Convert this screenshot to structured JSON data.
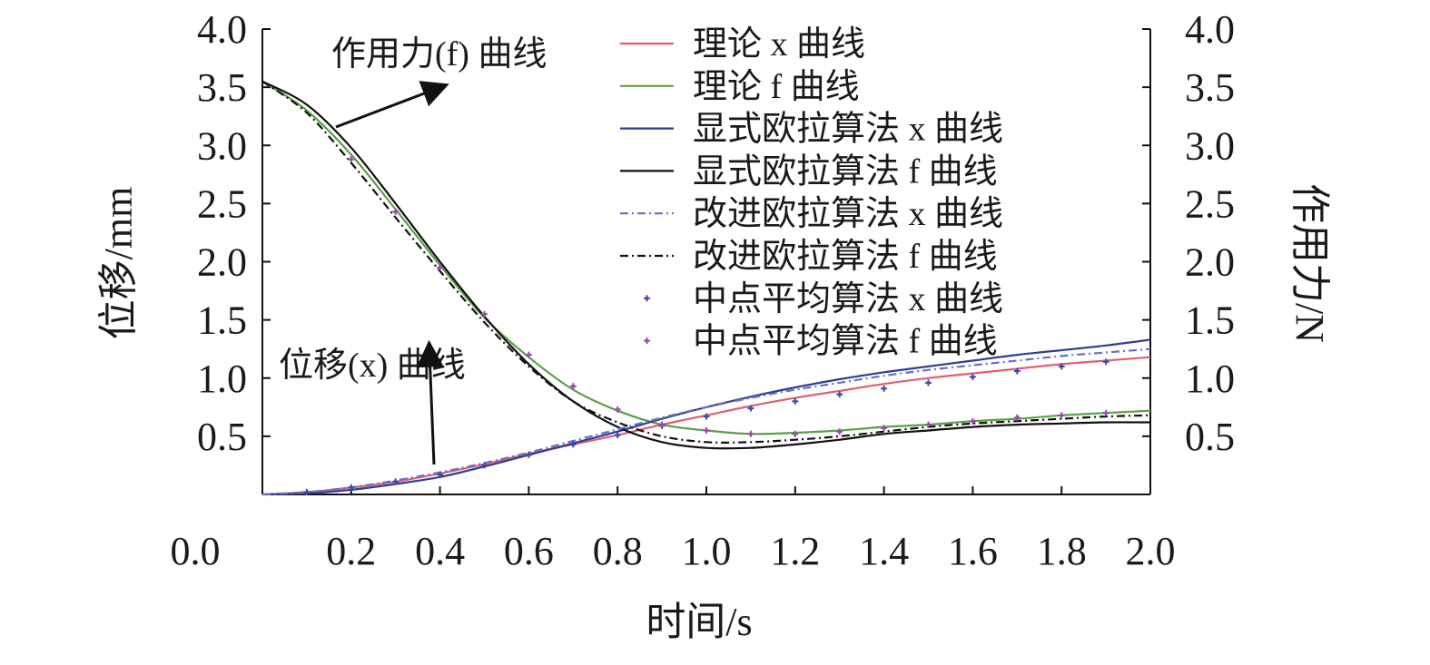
{
  "chart_data": {
    "type": "line",
    "title": "",
    "xlabel": "时间/s",
    "ylabel_left": "位移/mm",
    "ylabel_right": "作用力/N",
    "xlim": [
      0,
      2.0
    ],
    "ylim_left": [
      0,
      4.0
    ],
    "ylim_right": [
      0,
      4.0
    ],
    "x_ticks": [
      "0.0",
      "0.2",
      "0.4",
      "0.6",
      "0.8",
      "1.0",
      "1.2",
      "1.4",
      "1.6",
      "1.8",
      "2.0"
    ],
    "y_ticks_left": [
      "0.5",
      "1.0",
      "1.5",
      "2.0",
      "2.5",
      "3.0",
      "3.5",
      "4.0"
    ],
    "y_ticks_right": [
      "0.5",
      "1.0",
      "1.5",
      "2.0",
      "2.5",
      "3.0",
      "3.5",
      "4.0"
    ],
    "grid": false,
    "legend_position": "top-right",
    "annotations": [
      {
        "text": "作用力(f) 曲线",
        "points_to": {
          "x": 0.42,
          "y": 3.55
        }
      },
      {
        "text": "位移(x) 曲线",
        "points_to": {
          "x": 0.38,
          "y": 1.32
        }
      }
    ],
    "series": [
      {
        "name": "理论 x 曲线",
        "color": "#e06070",
        "style": "solid",
        "x": [
          0,
          0.1,
          0.2,
          0.3,
          0.4,
          0.5,
          0.6,
          0.7,
          0.8,
          0.9,
          1.0,
          1.1,
          1.2,
          1.3,
          1.4,
          1.5,
          1.6,
          1.7,
          1.8,
          1.9,
          2.0
        ],
        "y": [
          0,
          0.02,
          0.06,
          0.11,
          0.18,
          0.26,
          0.35,
          0.43,
          0.51,
          0.6,
          0.68,
          0.76,
          0.83,
          0.89,
          0.95,
          1.0,
          1.04,
          1.08,
          1.12,
          1.15,
          1.18
        ]
      },
      {
        "name": "理论 f 曲线",
        "color": "#5aa04a",
        "style": "solid",
        "x": [
          0,
          0.1,
          0.2,
          0.3,
          0.4,
          0.5,
          0.6,
          0.7,
          0.8,
          0.9,
          1.0,
          1.1,
          1.2,
          1.3,
          1.4,
          1.5,
          1.6,
          1.7,
          1.8,
          1.9,
          2.0
        ],
        "y": [
          3.55,
          3.3,
          2.92,
          2.45,
          1.97,
          1.52,
          1.18,
          0.9,
          0.72,
          0.6,
          0.55,
          0.52,
          0.53,
          0.55,
          0.58,
          0.6,
          0.63,
          0.65,
          0.68,
          0.7,
          0.72
        ]
      },
      {
        "name": "显式欧拉算法 x 曲线",
        "color": "#2e3f93",
        "style": "solid",
        "x": [
          0,
          0.1,
          0.2,
          0.3,
          0.4,
          0.5,
          0.6,
          0.7,
          0.8,
          0.9,
          1.0,
          1.1,
          1.2,
          1.3,
          1.4,
          1.5,
          1.6,
          1.7,
          1.8,
          1.9,
          2.0
        ],
        "y": [
          0,
          0.01,
          0.04,
          0.09,
          0.15,
          0.24,
          0.34,
          0.44,
          0.54,
          0.65,
          0.75,
          0.84,
          0.92,
          0.99,
          1.05,
          1.1,
          1.15,
          1.2,
          1.24,
          1.28,
          1.33
        ]
      },
      {
        "name": "显式欧拉算法 f 曲线",
        "color": "#111111",
        "style": "solid",
        "x": [
          0,
          0.1,
          0.2,
          0.3,
          0.4,
          0.5,
          0.6,
          0.7,
          0.8,
          0.9,
          1.0,
          1.1,
          1.2,
          1.3,
          1.4,
          1.5,
          1.6,
          1.7,
          1.8,
          1.9,
          2.0
        ],
        "y": [
          3.55,
          3.35,
          2.98,
          2.5,
          2.0,
          1.53,
          1.12,
          0.8,
          0.58,
          0.45,
          0.4,
          0.4,
          0.43,
          0.47,
          0.52,
          0.55,
          0.58,
          0.6,
          0.61,
          0.62,
          0.62
        ]
      },
      {
        "name": "改进欧拉算法 x 曲线",
        "color": "#6a70c0",
        "style": "dashdot",
        "x": [
          0,
          0.1,
          0.2,
          0.3,
          0.4,
          0.5,
          0.6,
          0.7,
          0.8,
          0.9,
          1.0,
          1.1,
          1.2,
          1.3,
          1.4,
          1.5,
          1.6,
          1.7,
          1.8,
          1.9,
          2.0
        ],
        "y": [
          0,
          0.02,
          0.06,
          0.12,
          0.19,
          0.27,
          0.36,
          0.46,
          0.56,
          0.66,
          0.75,
          0.83,
          0.9,
          0.96,
          1.02,
          1.07,
          1.11,
          1.15,
          1.19,
          1.22,
          1.25
        ]
      },
      {
        "name": "改进欧拉算法 f 曲线",
        "color": "#111111",
        "style": "dashdot",
        "x": [
          0,
          0.1,
          0.2,
          0.3,
          0.4,
          0.5,
          0.6,
          0.7,
          0.8,
          0.9,
          1.0,
          1.1,
          1.2,
          1.3,
          1.4,
          1.5,
          1.6,
          1.7,
          1.8,
          1.9,
          2.0
        ],
        "y": [
          3.55,
          3.28,
          2.85,
          2.38,
          1.92,
          1.48,
          1.1,
          0.8,
          0.62,
          0.5,
          0.45,
          0.45,
          0.47,
          0.5,
          0.54,
          0.58,
          0.61,
          0.63,
          0.65,
          0.67,
          0.68
        ]
      },
      {
        "name": "中点平均算法 x 曲线",
        "color": "#3d4ca8",
        "style": "marker",
        "x": [
          0.1,
          0.2,
          0.3,
          0.4,
          0.5,
          0.6,
          0.7,
          0.8,
          0.9,
          1.0,
          1.1,
          1.2,
          1.3,
          1.4,
          1.5,
          1.6,
          1.7,
          1.8,
          1.9
        ],
        "y": [
          0.02,
          0.06,
          0.11,
          0.17,
          0.25,
          0.34,
          0.43,
          0.51,
          0.59,
          0.67,
          0.74,
          0.8,
          0.86,
          0.91,
          0.96,
          1.01,
          1.06,
          1.1,
          1.14
        ]
      },
      {
        "name": "中点平均算法 f 曲线",
        "color": "#9b4aa8",
        "style": "marker",
        "x": [
          0.2,
          0.3,
          0.4,
          0.5,
          0.6,
          0.7,
          0.8,
          0.9,
          1.0,
          1.1,
          1.2,
          1.3,
          1.4,
          1.5,
          1.6,
          1.7,
          1.8,
          1.9
        ],
        "y": [
          2.88,
          2.43,
          1.95,
          1.55,
          1.2,
          0.93,
          0.73,
          0.6,
          0.55,
          0.52,
          0.52,
          0.54,
          0.57,
          0.6,
          0.63,
          0.66,
          0.68,
          0.7
        ]
      }
    ]
  }
}
